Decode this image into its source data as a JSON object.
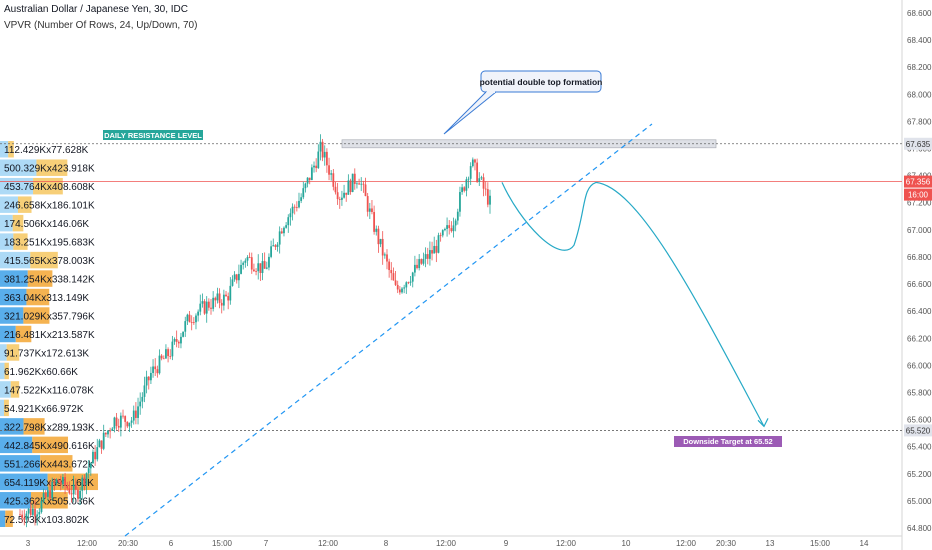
{
  "header": {
    "title": "Australian Dollar / Japanese Yen, 30, IDC",
    "indicator": "VPVR (Number Of Rows, 24, Up/Down, 70)"
  },
  "colors": {
    "up": "#26a69a",
    "down": "#ef5350",
    "vp_up": "#9fd3f5",
    "vp_up_dark": "#3ca0e8",
    "vp_down": "#f6c760",
    "vp_down_dark": "#f3a632",
    "trend": "#2196f3",
    "path": "#26a9c6",
    "resistance_label_bg": "#26a69a",
    "target_label_bg": "#9c5bb5",
    "price_badge": "#ef5350"
  },
  "chart_data": {
    "type": "candlestick",
    "y_ticks": [
      "68.600",
      "68.400",
      "68.200",
      "68.000",
      "67.800",
      "67.600",
      "67.400",
      "67.200",
      "67.000",
      "66.800",
      "66.600",
      "66.400",
      "66.200",
      "66.000",
      "65.800",
      "65.600",
      "65.400",
      "65.200",
      "65.000",
      "64.800"
    ],
    "x_ticks": [
      "3",
      "12:00",
      "20:30",
      "6",
      "15:00",
      "7",
      "12:00",
      "8",
      "12:00",
      "9",
      "12:00",
      "10",
      "12:00",
      "20:30",
      "13",
      "15:00",
      "14"
    ],
    "price_badges": [
      {
        "label": "67.635",
        "value": 67.635,
        "style": "gray"
      },
      {
        "label": "67.356",
        "value": 67.356,
        "style": "red"
      },
      {
        "label": "16:00",
        "value": 67.26,
        "style": "red"
      },
      {
        "label": "65.520",
        "value": 65.52,
        "style": "gray"
      }
    ],
    "volume_profile": [
      {
        "label": "112.429Kx77.628K",
        "up": 112.429,
        "down": 77.628
      },
      {
        "label": "500.329Kx423.918K",
        "up": 500.329,
        "down": 423.918
      },
      {
        "label": "453.764Kx408.608K",
        "up": 453.764,
        "down": 408.608
      },
      {
        "label": "246.658Kx186.101K",
        "up": 246.658,
        "down": 186.101
      },
      {
        "label": "174.506Kx146.06K",
        "up": 174.506,
        "down": 146.06
      },
      {
        "label": "183.251Kx195.683K",
        "up": 183.251,
        "down": 195.683
      },
      {
        "label": "415.565Kx378.003K",
        "up": 415.565,
        "down": 378.003
      },
      {
        "label": "381.254Kx338.142K",
        "up": 381.254,
        "down": 338.142
      },
      {
        "label": "363.04Kx313.149K",
        "up": 363.04,
        "down": 313.149
      },
      {
        "label": "321.029Kx357.796K",
        "up": 321.029,
        "down": 357.796
      },
      {
        "label": "216.481Kx213.587K",
        "up": 216.481,
        "down": 213.587
      },
      {
        "label": "91.737Kx172.613K",
        "up": 91.737,
        "down": 172.613
      },
      {
        "label": "61.962Kx60.66K",
        "up": 61.962,
        "down": 60.66
      },
      {
        "label": "147.522Kx116.078K",
        "up": 147.522,
        "down": 116.078
      },
      {
        "label": "54.921Kx66.972K",
        "up": 54.921,
        "down": 66.972
      },
      {
        "label": "322.798Kx289.193K",
        "up": 322.798,
        "down": 289.193
      },
      {
        "label": "442.845Kx490.616K",
        "up": 442.845,
        "down": 490.616
      },
      {
        "label": "551.266Kx443.672K",
        "up": 551.266,
        "down": 443.672
      },
      {
        "label": "654.119Kx691.163K",
        "up": 654.119,
        "down": 691.163
      },
      {
        "label": "425.362Kx505.036K",
        "up": 425.362,
        "down": 505.036
      },
      {
        "label": "72.503Kx103.802K",
        "up": 72.503,
        "down": 103.802
      }
    ],
    "resistance_level": 67.635,
    "target_level": 65.52,
    "last_price": 67.356,
    "price_range": [
      64.8,
      68.6
    ],
    "annotations": [
      {
        "text": "DAILY RESISTANCE LEVEL"
      },
      {
        "text": "potential double top formation"
      },
      {
        "text": "Downside Target at 65.52"
      }
    ],
    "anchor_prices": [
      64.9,
      64.95,
      65.15,
      65.05,
      65.35,
      65.6,
      65.6,
      65.95,
      66.1,
      66.35,
      66.45,
      66.5,
      66.8,
      66.7,
      67.05,
      67.25,
      67.6,
      67.25,
      67.4,
      66.95,
      66.55,
      66.7,
      66.85,
      67.05,
      67.5,
      67.2
    ],
    "forecast_path": {
      "start": 67.35,
      "dip": 66.85,
      "peak": 67.35,
      "end": 65.55
    }
  }
}
